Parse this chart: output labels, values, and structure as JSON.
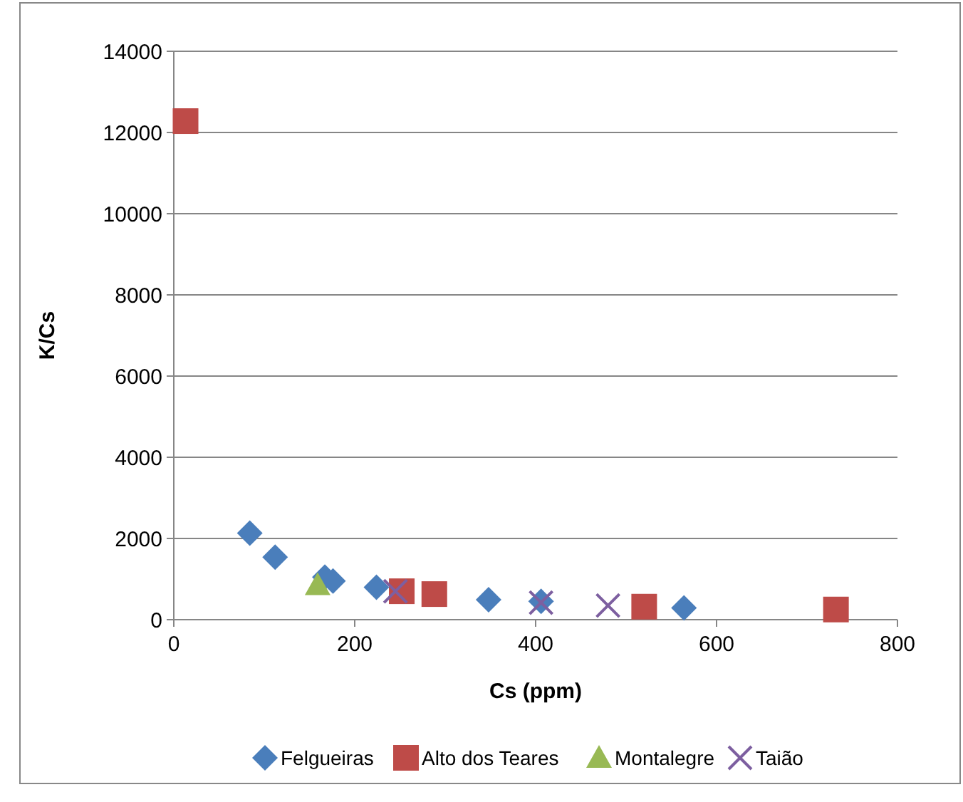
{
  "chart_data": {
    "type": "scatter",
    "xlabel": "Cs (ppm)",
    "ylabel": "K/Cs",
    "xlim": [
      0,
      800
    ],
    "ylim": [
      0,
      14000
    ],
    "xticks": [
      0,
      200,
      400,
      600,
      800
    ],
    "yticks": [
      0,
      2000,
      4000,
      6000,
      8000,
      10000,
      12000,
      14000
    ],
    "grid": "y",
    "legend": "bottom",
    "series": [
      {
        "name": "Felgueiras",
        "color": "#4a7ebb",
        "marker": "diamond",
        "x": [
          84,
          112,
          167,
          176,
          224,
          348,
          406,
          564
        ],
        "values": [
          2130,
          1540,
          1050,
          950,
          800,
          490,
          450,
          290
        ]
      },
      {
        "name": "Alto dos Teares",
        "color": "#be4b48",
        "marker": "square",
        "x": [
          13,
          252,
          288,
          520,
          732
        ],
        "values": [
          12280,
          700,
          630,
          320,
          250
        ]
      },
      {
        "name": "Montalegre",
        "color": "#98b954",
        "marker": "triangle",
        "x": [
          159
        ],
        "values": [
          850
        ]
      },
      {
        "name": "Taião",
        "color": "#7d5fa0",
        "marker": "cross",
        "x": [
          245,
          406,
          480
        ],
        "values": [
          700,
          420,
          350
        ]
      }
    ]
  }
}
